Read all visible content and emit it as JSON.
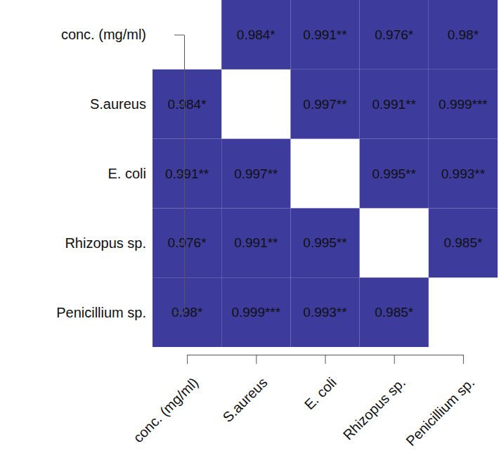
{
  "chart_data": {
    "type": "heatmap",
    "categories": [
      "conc. (mg/ml)",
      "S.aureus",
      "E. coli",
      "Rhizopus sp.",
      "Penicillium sp."
    ],
    "cells": [
      [
        null,
        0.984,
        0.991,
        0.976,
        0.98
      ],
      [
        0.984,
        null,
        0.997,
        0.991,
        0.999
      ],
      [
        0.991,
        0.997,
        null,
        0.995,
        0.993
      ],
      [
        0.976,
        0.991,
        0.995,
        null,
        0.985
      ],
      [
        0.98,
        0.999,
        0.993,
        0.985,
        null
      ]
    ],
    "value_labels": [
      [
        null,
        "0.984*",
        "0.991**",
        "0.976*",
        "0.98*"
      ],
      [
        "0.984*",
        null,
        "0.997**",
        "0.991**",
        "0.999***"
      ],
      [
        "0.991**",
        "0.997**",
        null,
        "0.995**",
        "0.993**"
      ],
      [
        "0.976*",
        "0.991**",
        "0.995**",
        null,
        "0.985*"
      ],
      [
        "0.98*",
        "0.999***",
        "0.993**",
        "0.985*",
        null
      ]
    ],
    "color": "#3d3b9c",
    "data_labels": true
  }
}
